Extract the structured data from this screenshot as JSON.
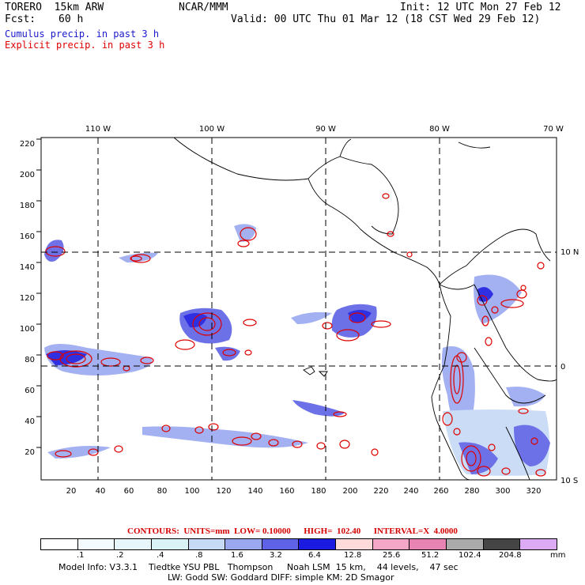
{
  "header": {
    "model": "TORERO  15km ARW",
    "org": "NCAR/MMM",
    "init": "Init: 12 UTC Mon 27 Feb 12",
    "fcst_label": "Fcst:",
    "fcst_value": "60 h",
    "valid": "Valid: 00 UTC Thu 01 Mar 12 (18 CST Wed 29 Feb 12)",
    "line_cumulus": "Cumulus precip. in past 3 h",
    "line_explicit": "Explicit precip. in past 3 h",
    "color_cumulus": "#1a1acc",
    "color_explicit": "#dd0000"
  },
  "axes": {
    "top_labels": [
      "110 W",
      "100 W",
      "90 W",
      "80 W",
      "70 W"
    ],
    "right_labels": [
      "10 N",
      "0",
      "10 S"
    ],
    "x_ticks": [
      "20",
      "40",
      "60",
      "80",
      "100",
      "120",
      "140",
      "160",
      "180",
      "200",
      "220",
      "240",
      "260",
      "280",
      "300",
      "320"
    ],
    "y_ticks": [
      "20",
      "40",
      "60",
      "80",
      "100",
      "120",
      "140",
      "160",
      "180",
      "200",
      "220"
    ]
  },
  "contours_line": "CONTOURS:  UNITS=mm  LOW= 0.10000      HIGH=  102.40      INTERVAL=X  4.0000",
  "legend": {
    "labels": [
      ".1",
      ".2",
      ".4",
      ".8",
      "1.6",
      "3.2",
      "6.4",
      "12.8",
      "25.6",
      "51.2",
      "102.4",
      "204.8",
      "mm"
    ],
    "colors": [
      "#ffffff",
      "#f4fbff",
      "#e6f6fb",
      "#d8f2f6",
      "#c6daf6",
      "#9aa8f0",
      "#5e62e6",
      "#1a1ae0",
      "#ffdada",
      "#f4a6c6",
      "#e884b4",
      "#aaaaaa",
      "#444444",
      "#dcaaf4"
    ]
  },
  "footer": {
    "line1": "Model Info: V3.3.1    Tiedtke YSU PBL   Thompson     Noah LSM  15 km,    44 levels,    47 sec",
    "line2": "LW: Godd SW: Goddard DIFF: simple KM: 2D Smagor"
  }
}
